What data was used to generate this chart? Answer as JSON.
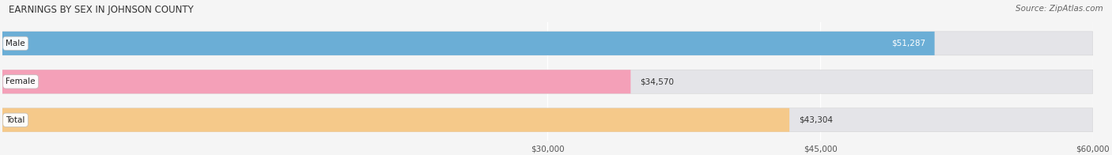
{
  "title": "EARNINGS BY SEX IN JOHNSON COUNTY",
  "source": "Source: ZipAtlas.com",
  "categories": [
    "Male",
    "Female",
    "Total"
  ],
  "values": [
    51287,
    34570,
    43304
  ],
  "labels": [
    "$51,287",
    "$34,570",
    "$43,304"
  ],
  "label_inside": [
    true,
    false,
    false
  ],
  "bar_colors": [
    "#6baed6",
    "#f4a0b8",
    "#f5c98a"
  ],
  "bar_bg_color": "#e4e4e8",
  "background_color": "#f5f5f5",
  "xmin": 0,
  "xmax": 60000,
  "xticks": [
    30000,
    45000,
    60000
  ],
  "xtick_labels": [
    "$30,000",
    "$45,000",
    "$60,000"
  ],
  "bar_height": 0.62,
  "figsize": [
    14.06,
    1.96
  ],
  "dpi": 100
}
